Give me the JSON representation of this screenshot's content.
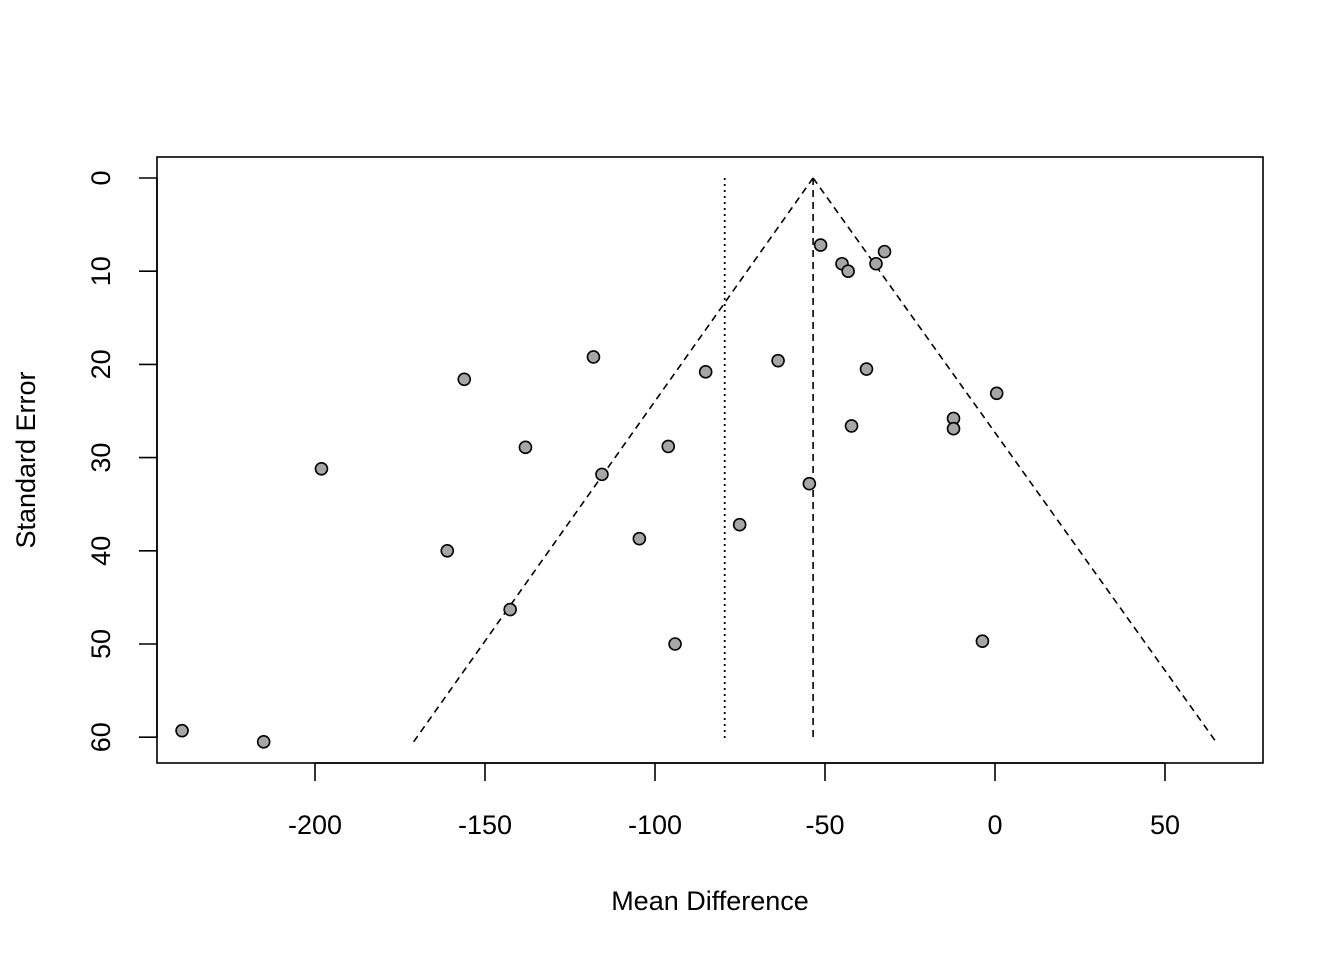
{
  "chart_data": {
    "type": "scatter",
    "title": "",
    "xlabel": "Mean Difference",
    "ylabel": "Standard Error",
    "xlim": [
      -240,
      75
    ],
    "ylim": [
      0,
      62
    ],
    "y_reversed": true,
    "x_ticks": [
      -200,
      -150,
      -100,
      -50,
      0,
      50
    ],
    "x_tick_labels": [
      "-200",
      "-150",
      "-100",
      "-50",
      "0",
      "50"
    ],
    "y_ticks": [
      0,
      10,
      20,
      30,
      40,
      50,
      60
    ],
    "y_tick_labels": [
      "0",
      "10",
      "20",
      "30",
      "40",
      "50",
      "60"
    ],
    "grid": false,
    "legend": "none",
    "point_fill": "#a6a6a6",
    "point_stroke": "#000000",
    "reference_lines": {
      "fixed_effect": -53.5,
      "random_effect": -79.5,
      "funnel_apex_se": 0,
      "funnel_bottom_se": 60.5,
      "funnel_left_x": -171,
      "funnel_right_x": 65
    },
    "points": [
      {
        "x": -51.3,
        "y": 7.2
      },
      {
        "x": -45,
        "y": 9.2
      },
      {
        "x": -43.2,
        "y": 10.0
      },
      {
        "x": -35,
        "y": 9.2
      },
      {
        "x": -32.5,
        "y": 7.9
      },
      {
        "x": -118.1,
        "y": 19.2
      },
      {
        "x": -156.1,
        "y": 21.6
      },
      {
        "x": -85.1,
        "y": 20.8
      },
      {
        "x": -63.8,
        "y": 19.6
      },
      {
        "x": -37.8,
        "y": 20.5
      },
      {
        "x": 0.5,
        "y": 23.1
      },
      {
        "x": -12.2,
        "y": 25.8
      },
      {
        "x": -12.2,
        "y": 26.9
      },
      {
        "x": -42.2,
        "y": 26.6
      },
      {
        "x": -138.1,
        "y": 28.9
      },
      {
        "x": -96.1,
        "y": 28.8
      },
      {
        "x": -115.6,
        "y": 31.8
      },
      {
        "x": -198.1,
        "y": 31.2
      },
      {
        "x": -54.6,
        "y": 32.8
      },
      {
        "x": -75.1,
        "y": 37.2
      },
      {
        "x": -104.6,
        "y": 38.7
      },
      {
        "x": -161.1,
        "y": 40.0
      },
      {
        "x": -142.6,
        "y": 46.3
      },
      {
        "x": -94.1,
        "y": 50.0
      },
      {
        "x": -3.7,
        "y": 49.7
      },
      {
        "x": -239.1,
        "y": 59.3
      },
      {
        "x": -215.1,
        "y": 60.5
      }
    ]
  }
}
